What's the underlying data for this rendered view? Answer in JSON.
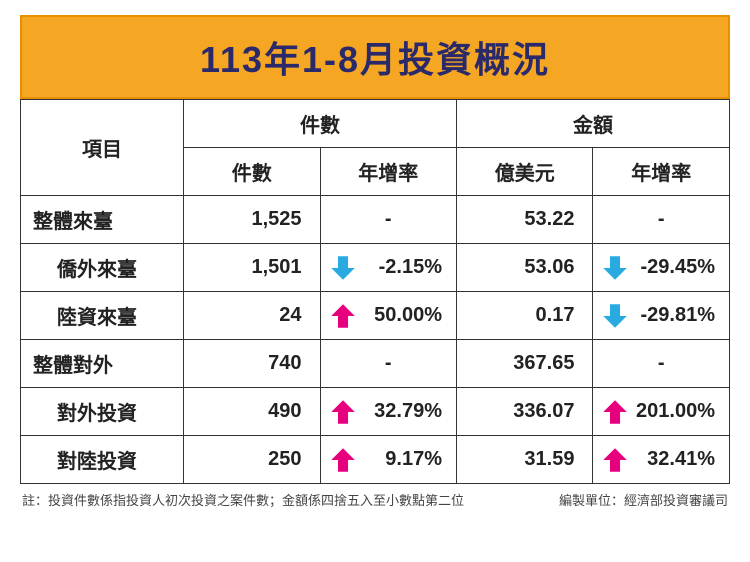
{
  "title": "113年1-8月投資概況",
  "header": {
    "item": "項目",
    "count_group": "件數",
    "amount_group": "金額",
    "count": "件數",
    "count_growth": "年增率",
    "amount": "億美元",
    "amount_growth": "年增率"
  },
  "rows": [
    {
      "label": "整體來臺",
      "indent": false,
      "count": "1,525",
      "count_growth": null,
      "count_dir": null,
      "amount": "53.22",
      "amount_growth": null,
      "amount_dir": null
    },
    {
      "label": "僑外來臺",
      "indent": true,
      "count": "1,501",
      "count_growth": "-2.15%",
      "count_dir": "down",
      "amount": "53.06",
      "amount_growth": "-29.45%",
      "amount_dir": "down"
    },
    {
      "label": "陸資來臺",
      "indent": true,
      "count": "24",
      "count_growth": "50.00%",
      "count_dir": "up",
      "amount": "0.17",
      "amount_growth": "-29.81%",
      "amount_dir": "down"
    },
    {
      "label": "整體對外",
      "indent": false,
      "count": "740",
      "count_growth": null,
      "count_dir": null,
      "amount": "367.65",
      "amount_growth": null,
      "amount_dir": null
    },
    {
      "label": "對外投資",
      "indent": true,
      "count": "490",
      "count_growth": "32.79%",
      "count_dir": "up",
      "amount": "336.07",
      "amount_growth": "201.00%",
      "amount_dir": "up"
    },
    {
      "label": "對陸投資",
      "indent": true,
      "count": "250",
      "count_growth": "9.17%",
      "count_dir": "up",
      "amount": "31.59",
      "amount_growth": "32.41%",
      "amount_dir": "up"
    }
  ],
  "colors": {
    "up": "#e6007e",
    "down": "#29abe2",
    "header_bg": "#f5a623",
    "header_border": "#e89000",
    "title_color": "#2a2a6a"
  },
  "footer": {
    "note": "註：投資件數係指投資人初次投資之案件數；金額係四捨五入至小數點第二位",
    "source": "編製單位：經濟部投資審議司"
  }
}
